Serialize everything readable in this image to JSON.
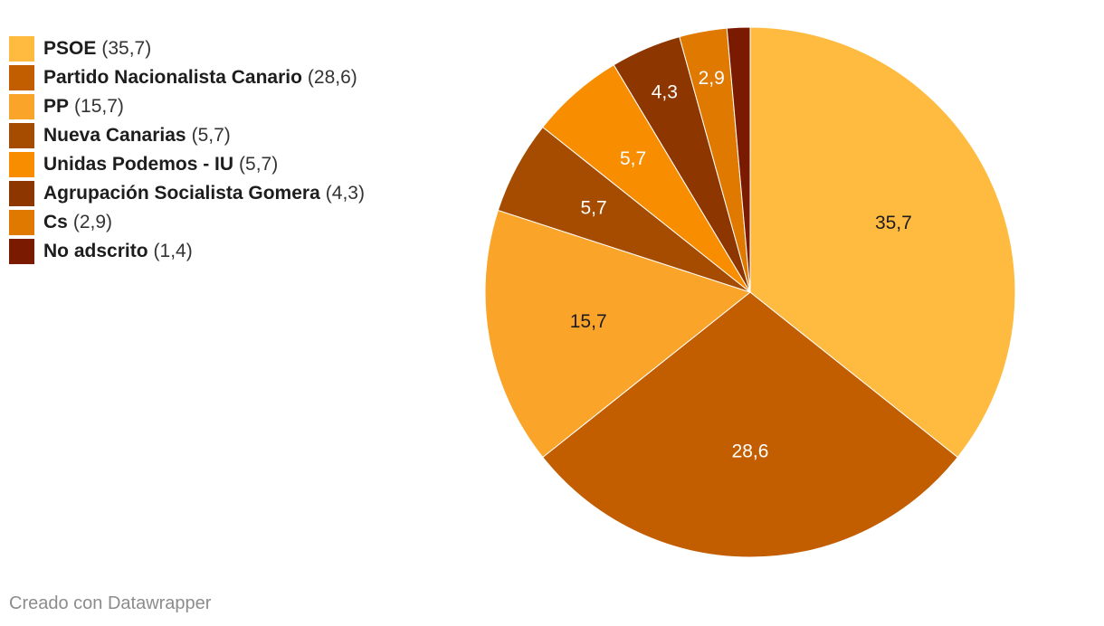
{
  "chart_data": {
    "type": "pie",
    "categories": [
      "PSOE",
      "Partido Nacionalista Canario",
      "PP",
      "Nueva Canarias",
      "Unidas Podemos - IU",
      "Agrupación Socialista Gomera",
      "Cs",
      "No adscrito"
    ],
    "values": [
      35.7,
      28.6,
      15.7,
      5.7,
      5.7,
      4.3,
      2.9,
      1.4
    ],
    "value_labels": [
      "35,7",
      "28,6",
      "15,7",
      "5,7",
      "5,7",
      "4,3",
      "2,9",
      ""
    ],
    "legend_values": [
      "(35,7)",
      "(28,6)",
      "(15,7)",
      "(5,7)",
      "(5,7)",
      "(4,3)",
      "(2,9)",
      "(1,4)"
    ],
    "colors": [
      "#ffba40",
      "#c25e00",
      "#fba42a",
      "#a64c00",
      "#f98d00",
      "#8e3600",
      "#e07900",
      "#7a1a00"
    ],
    "label_colors": [
      "#1d1d1d",
      "#ffffff",
      "#1d1d1d",
      "#ffffff",
      "#ffffff",
      "#ffffff",
      "#ffffff",
      "#ffffff"
    ],
    "legend_placement": "top-left",
    "start_angle_deg": 0,
    "direction": "clockwise"
  },
  "footer": {
    "credit": "Creado con Datawrapper"
  }
}
